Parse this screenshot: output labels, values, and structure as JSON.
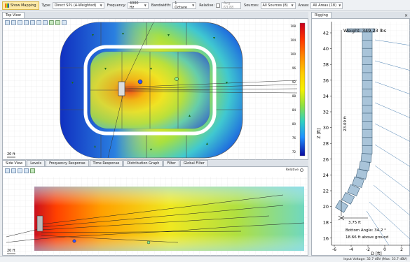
{
  "toolbar": {
    "show_mapping": "Show Mapping",
    "type_label": "Type:",
    "type_value": "Direct SPL (A-Weighted)",
    "frequency_label": "Frequency:",
    "frequency_value": "4000 Hz",
    "bandwidth_label": "Bandwidth:",
    "bandwidth_value": "1 Octave",
    "relative_label": "Relative:",
    "relative_value": "Avg: 63.88",
    "sources_label": "Sources:",
    "sources_value": "All Sources (8)",
    "areas_label": "Areas:",
    "areas_value": "All Areas (18)"
  },
  "top_view": {
    "tab": "Top View",
    "scale_label": "20 ft",
    "legend_max": "108",
    "legend_ticks": [
      "104",
      "100",
      "96",
      "92",
      "88",
      "84",
      "80",
      "76",
      "72"
    ],
    "legend_colors": [
      "#c8001e",
      "#ff3300",
      "#ff8800",
      "#ffcc00",
      "#f5f000",
      "#90e040",
      "#30d0c0",
      "#1e90ff",
      "#1040e0",
      "#0a0aa0"
    ]
  },
  "bottom_tabs": [
    "Side View",
    "Levels",
    "Frequency Response",
    "Time Response",
    "Distribution Graph",
    "Filter",
    "Global Filter"
  ],
  "side_view": {
    "scale_label": "20 ft",
    "reference_label": "Relative"
  },
  "rigging": {
    "tab": "Rigging",
    "weight": "Weight: 349.23 lbs",
    "height_dim": "23.09 ft",
    "width_dim": "3.75 ft",
    "bottom_angle": "Bottom Angle: 34.2 °",
    "above_ground": "18.66 ft above ground",
    "y_axis_label": "Z [ft]",
    "x_axis_label": "D [ft]",
    "y_ticks": [
      "42",
      "40",
      "38",
      "36",
      "34",
      "32",
      "30",
      "28",
      "26",
      "24",
      "22",
      "20",
      "18",
      "16"
    ],
    "x_ticks": [
      "-6",
      "-4",
      "-2",
      "0",
      "2",
      "4"
    ]
  },
  "status": {
    "text": "Input Voltage: 32.7 dBV (Max: 33.7 dBV)"
  }
}
